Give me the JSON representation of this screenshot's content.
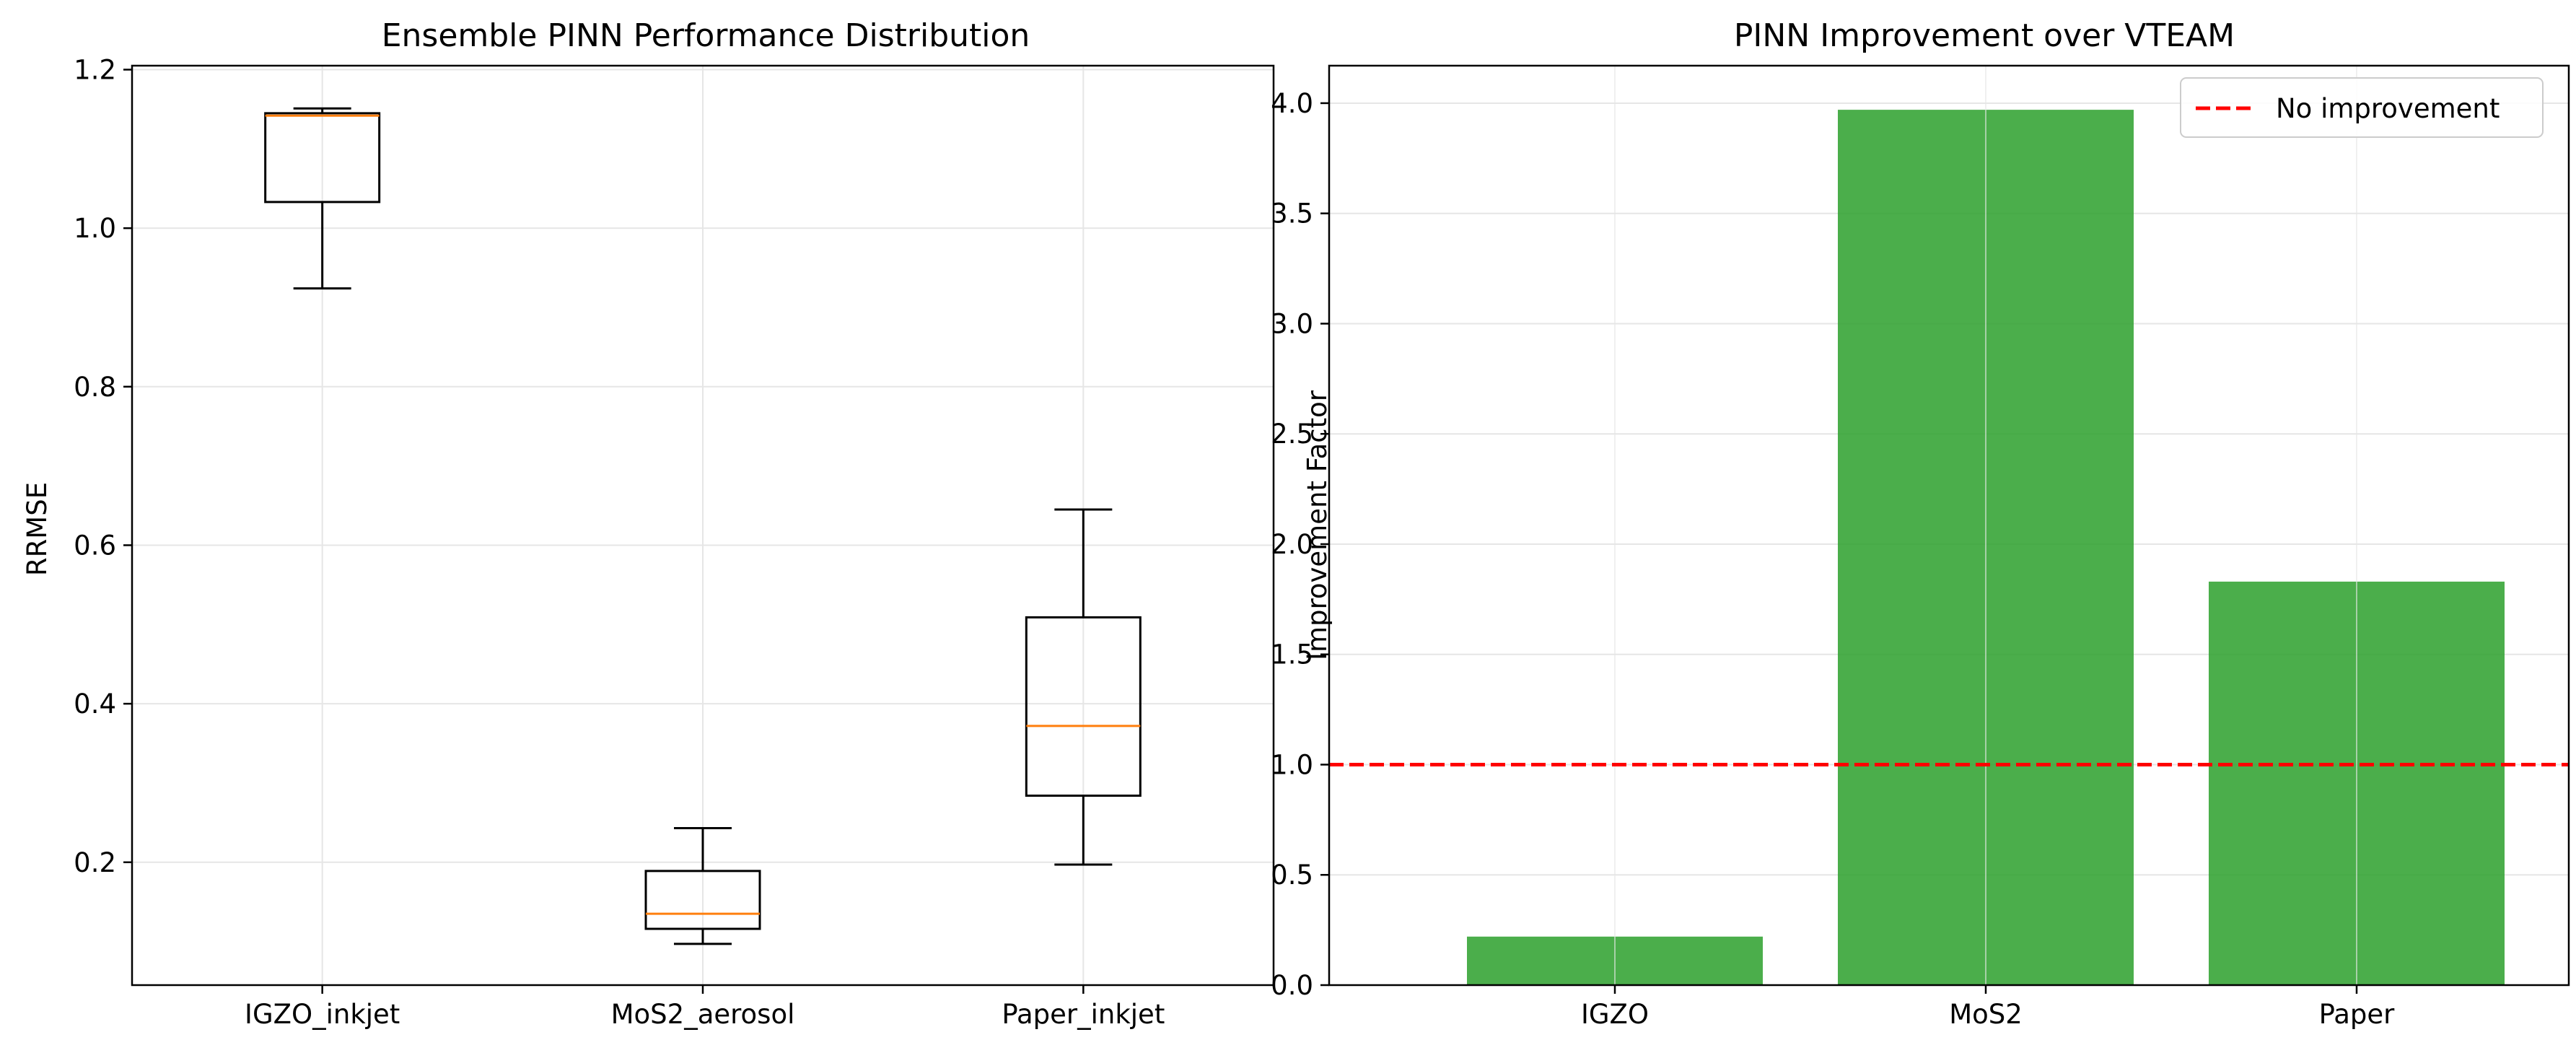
{
  "chart_data": [
    {
      "type": "box",
      "title": "Ensemble PINN Performance Distribution",
      "xlabel": "",
      "ylabel": "RRMSE",
      "ylim": [
        0.045,
        1.205
      ],
      "yticks": [
        0.2,
        0.4,
        0.6,
        0.8,
        1.0,
        1.2
      ],
      "ytick_labels": [
        "0.2",
        "0.4",
        "0.6",
        "0.8",
        "1.0",
        "1.2"
      ],
      "grid": true,
      "categories": [
        "IGZO_inkjet",
        "MoS2_aerosol",
        "Paper_inkjet"
      ],
      "boxes": [
        {
          "whisker_low": 0.924,
          "q1": 1.033,
          "median": 1.142,
          "q3": 1.145,
          "whisker_high": 1.151
        },
        {
          "whisker_low": 0.097,
          "q1": 0.116,
          "median": 0.135,
          "q3": 0.189,
          "whisker_high": 0.243
        },
        {
          "whisker_low": 0.197,
          "q1": 0.284,
          "median": 0.372,
          "q3": 0.509,
          "whisker_high": 0.645
        }
      ],
      "colors": {
        "box": "#000000",
        "median": "#ff7f0e",
        "grid": "#e6e6e6"
      }
    },
    {
      "type": "bar",
      "title": "PINN Improvement over VTEAM",
      "xlabel": "",
      "ylabel": "Improvement Factor",
      "ylim": [
        0,
        4.17
      ],
      "yticks": [
        0.0,
        0.5,
        1.0,
        1.5,
        2.0,
        2.5,
        3.0,
        3.5,
        4.0
      ],
      "ytick_labels": [
        "0.0",
        "0.5",
        "1.0",
        "1.5",
        "2.0",
        "2.5",
        "3.0",
        "3.5",
        "4.0"
      ],
      "grid": true,
      "categories": [
        "IGZO",
        "MoS2",
        "Paper"
      ],
      "values": [
        0.22,
        3.97,
        1.83
      ],
      "reference_line": {
        "y": 1.0,
        "label": "No improvement",
        "color": "#ff0000"
      },
      "legend": {
        "placement": "top-right",
        "entries": [
          "No improvement"
        ]
      },
      "colors": {
        "bar": "#2ca02c",
        "grid": "#e6e6e6"
      }
    }
  ]
}
